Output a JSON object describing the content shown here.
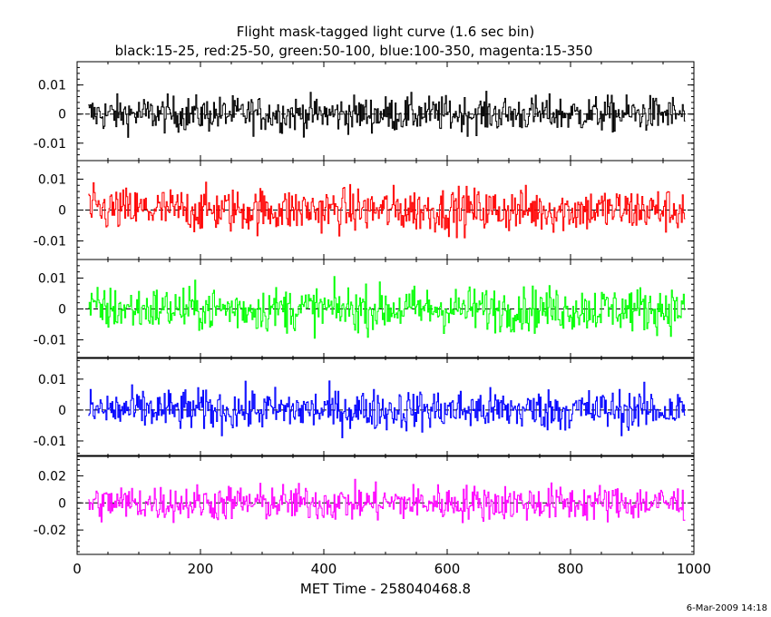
{
  "chart_data": {
    "type": "line",
    "title": "Flight mask-tagged light curve (1.6 sec bin)",
    "subtitle": "black:15-25, red:25-50, green:50-100, blue:100-350, magenta:15-350",
    "xlabel": "MET Time - 258040468.8",
    "xlim": [
      0,
      1000
    ],
    "x_ticks": [
      0,
      200,
      400,
      600,
      800,
      1000
    ],
    "x_range_data": [
      18,
      985
    ],
    "bin_size_sec": 1.6,
    "footer": "6-Mar-2009 14:18",
    "panels": [
      {
        "name": "black:15-25",
        "color": "#000000",
        "ylim": [
          -0.016,
          0.018
        ],
        "ticks": [
          -0.01,
          0,
          0.01
        ],
        "tick_labels": [
          "-0.01",
          "0",
          "0.01"
        ],
        "amplitude": 0.0055
      },
      {
        "name": "red:25-50",
        "color": "#ff0000",
        "ylim": [
          -0.016,
          0.016
        ],
        "ticks": [
          -0.01,
          0,
          0.01
        ],
        "tick_labels": [
          "-0.01",
          "0",
          "0.01"
        ],
        "amplitude": 0.0065
      },
      {
        "name": "green:50-100",
        "color": "#00ff00",
        "ylim": [
          -0.016,
          0.016
        ],
        "ticks": [
          -0.01,
          0,
          0.01
        ],
        "tick_labels": [
          "-0.01",
          "0",
          "0.01"
        ],
        "amplitude": 0.0065
      },
      {
        "name": "blue:100-350",
        "color": "#0000ff",
        "ylim": [
          -0.015,
          0.017
        ],
        "ticks": [
          -0.01,
          0,
          0.01
        ],
        "tick_labels": [
          "-0.01",
          "0",
          "0.01"
        ],
        "amplitude": 0.006
      },
      {
        "name": "magenta:15-350",
        "color": "#ff00ff",
        "ylim": [
          -0.038,
          0.035
        ],
        "ticks": [
          -0.02,
          0,
          0.02
        ],
        "tick_labels": [
          "-0.02",
          "0",
          "0.02"
        ],
        "amplitude": 0.012
      }
    ]
  }
}
